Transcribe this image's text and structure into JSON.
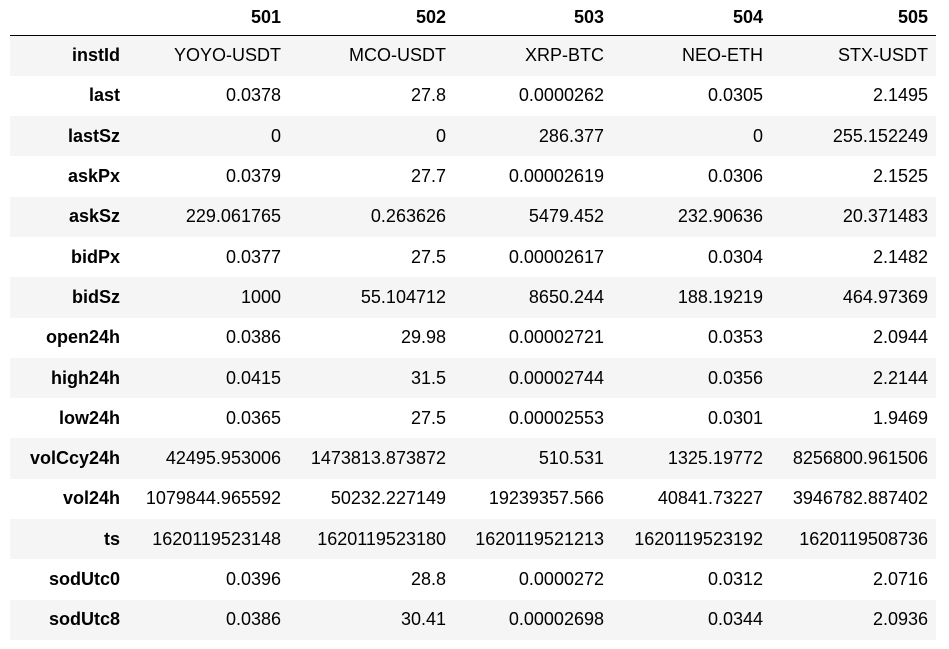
{
  "table": {
    "columns": [
      "501",
      "502",
      "503",
      "504",
      "505"
    ],
    "rows": [
      {
        "label": "instId",
        "values": [
          "YOYO-USDT",
          "MCO-USDT",
          "XRP-BTC",
          "NEO-ETH",
          "STX-USDT"
        ]
      },
      {
        "label": "last",
        "values": [
          "0.0378",
          "27.8",
          "0.0000262",
          "0.0305",
          "2.1495"
        ]
      },
      {
        "label": "lastSz",
        "values": [
          "0",
          "0",
          "286.377",
          "0",
          "255.152249"
        ]
      },
      {
        "label": "askPx",
        "values": [
          "0.0379",
          "27.7",
          "0.00002619",
          "0.0306",
          "2.1525"
        ]
      },
      {
        "label": "askSz",
        "values": [
          "229.061765",
          "0.263626",
          "5479.452",
          "232.90636",
          "20.371483"
        ]
      },
      {
        "label": "bidPx",
        "values": [
          "0.0377",
          "27.5",
          "0.00002617",
          "0.0304",
          "2.1482"
        ]
      },
      {
        "label": "bidSz",
        "values": [
          "1000",
          "55.104712",
          "8650.244",
          "188.19219",
          "464.97369"
        ]
      },
      {
        "label": "open24h",
        "values": [
          "0.0386",
          "29.98",
          "0.00002721",
          "0.0353",
          "2.0944"
        ]
      },
      {
        "label": "high24h",
        "values": [
          "0.0415",
          "31.5",
          "0.00002744",
          "0.0356",
          "2.2144"
        ]
      },
      {
        "label": "low24h",
        "values": [
          "0.0365",
          "27.5",
          "0.00002553",
          "0.0301",
          "1.9469"
        ]
      },
      {
        "label": "volCcy24h",
        "values": [
          "42495.953006",
          "1473813.873872",
          "510.531",
          "1325.19772",
          "8256800.961506"
        ]
      },
      {
        "label": "vol24h",
        "values": [
          "1079844.965592",
          "50232.227149",
          "19239357.566",
          "40841.73227",
          "3946782.887402"
        ]
      },
      {
        "label": "ts",
        "values": [
          "1620119523148",
          "1620119523180",
          "1620119521213",
          "1620119523192",
          "1620119508736"
        ]
      },
      {
        "label": "sodUtc0",
        "values": [
          "0.0396",
          "28.8",
          "0.0000272",
          "0.0312",
          "2.0716"
        ]
      },
      {
        "label": "sodUtc8",
        "values": [
          "0.0386",
          "30.41",
          "0.00002698",
          "0.0344",
          "2.0936"
        ]
      }
    ]
  }
}
